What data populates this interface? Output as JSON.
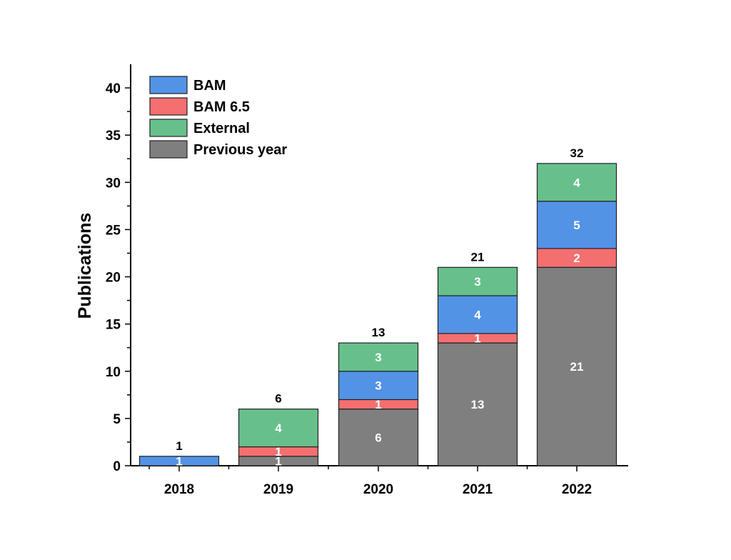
{
  "chart_data": {
    "type": "bar",
    "stacked": true,
    "categories": [
      "2018",
      "2019",
      "2020",
      "2021",
      "2022"
    ],
    "ylabel": "Publications",
    "xlabel": "",
    "ylim": [
      0,
      42.5
    ],
    "yticks": [
      0,
      5,
      10,
      15,
      20,
      25,
      30,
      35,
      40
    ],
    "legend_position": "top-left",
    "legend_order": [
      "BAM",
      "BAM 6.5",
      "External",
      "Previous year"
    ],
    "stack_order": [
      "Previous year",
      "BAM 6.5",
      "BAM",
      "External"
    ],
    "series": [
      {
        "name": "BAM",
        "color": "#5393e6",
        "values": [
          1,
          0,
          3,
          4,
          5
        ]
      },
      {
        "name": "BAM 6.5",
        "color": "#f46f6f",
        "values": [
          0,
          1,
          1,
          1,
          2
        ]
      },
      {
        "name": "External",
        "color": "#67c08c",
        "values": [
          0,
          4,
          3,
          3,
          4
        ]
      },
      {
        "name": "Previous year",
        "color": "#7f7f7f",
        "values": [
          0,
          1,
          6,
          13,
          21
        ]
      }
    ],
    "totals": [
      1,
      6,
      13,
      21,
      32
    ]
  }
}
